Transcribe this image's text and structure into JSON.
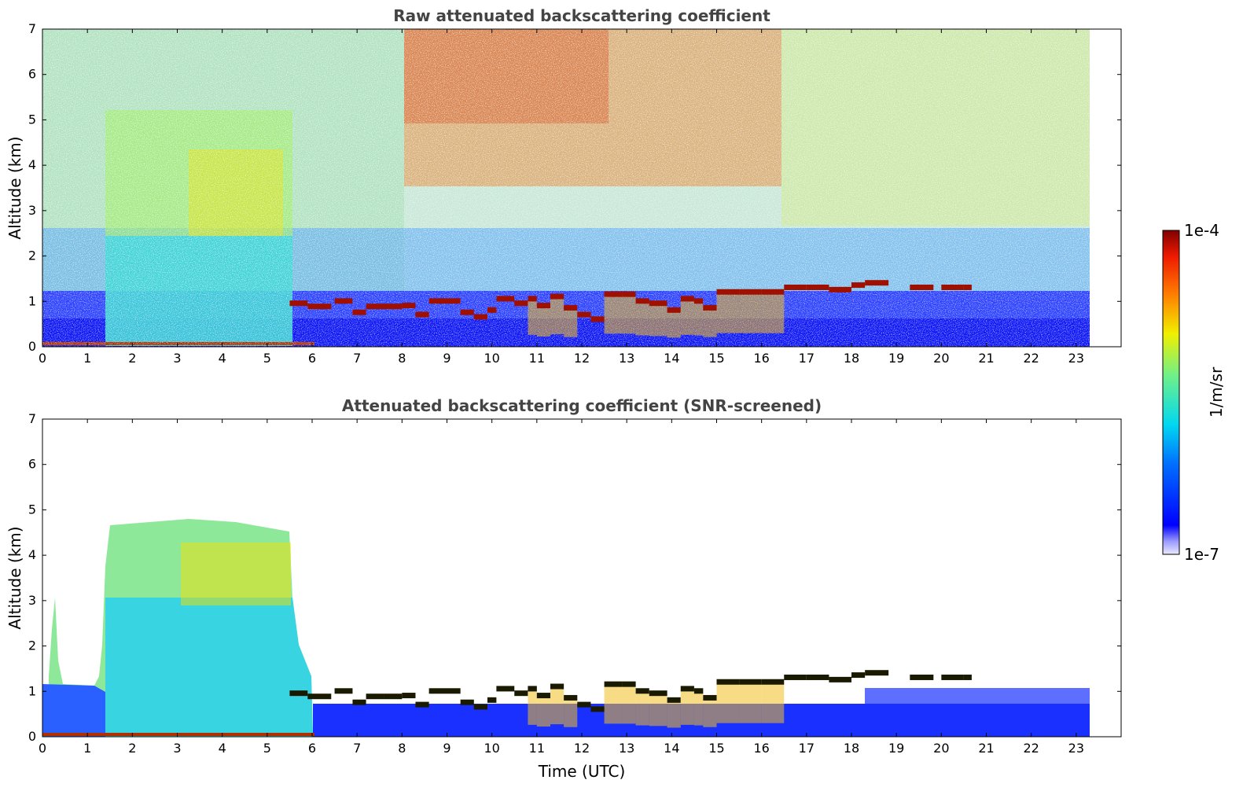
{
  "chart_data": [
    {
      "type": "heatmap",
      "title": "Raw attenuated backscattering coefficient",
      "xlabel": "",
      "ylabel": "Altitude (km)",
      "xlim": [
        0,
        24
      ],
      "ylim": [
        0,
        7
      ],
      "x_ticks": [
        "0",
        "1",
        "2",
        "3",
        "4",
        "5",
        "6",
        "7",
        "8",
        "9",
        "10",
        "11",
        "12",
        "13",
        "14",
        "15",
        "16",
        "17",
        "18",
        "19",
        "20",
        "21",
        "22",
        "23"
      ],
      "y_ticks": [
        "0",
        "1",
        "2",
        "3",
        "4",
        "5",
        "6",
        "7"
      ],
      "data_end_time": 23.3,
      "cloud_layer": {
        "x": [
          5.5,
          5.9,
          6.5,
          6.9,
          7.2,
          7.6,
          8.0,
          8.3,
          8.6,
          9.0,
          9.3,
          9.6,
          9.9,
          10.1,
          10.5,
          10.8,
          11.0,
          11.3,
          11.6,
          11.9,
          12.2,
          12.4,
          12.5,
          12.9,
          13.2,
          13.5,
          13.9,
          14.2,
          14.5,
          14.7,
          15.0,
          15.5,
          16.0,
          16.5,
          17.0,
          17.5,
          18.0,
          18.3,
          19.3,
          20.0,
          20.5
        ],
        "altitude": [
          0.95,
          0.88,
          1.0,
          0.75,
          0.88,
          0.88,
          0.9,
          0.7,
          1.0,
          1.0,
          0.75,
          0.65,
          0.8,
          1.05,
          0.95,
          1.05,
          0.9,
          1.1,
          0.85,
          0.7,
          0.6,
          0.6,
          1.15,
          1.15,
          1.0,
          0.95,
          0.8,
          1.05,
          1.0,
          0.85,
          1.2,
          1.2,
          1.2,
          1.3,
          1.3,
          1.25,
          1.35,
          1.4,
          1.3,
          1.3,
          1.3
        ]
      },
      "colorbar": {
        "min_label": "1e-7",
        "max_label": "1e-4",
        "label": "1/m/sr",
        "scale": "log",
        "colormap": "jet"
      }
    },
    {
      "type": "heatmap",
      "title": "Attenuated backscattering coefficient (SNR-screened)",
      "xlabel": "Time (UTC)",
      "ylabel": "Altitude (km)",
      "xlim": [
        0,
        24
      ],
      "ylim": [
        0,
        7
      ],
      "x_ticks": [
        "0",
        "1",
        "2",
        "3",
        "4",
        "5",
        "6",
        "7",
        "8",
        "9",
        "10",
        "11",
        "12",
        "13",
        "14",
        "15",
        "16",
        "17",
        "18",
        "19",
        "20",
        "21",
        "22",
        "23"
      ],
      "y_ticks": [
        "0",
        "1",
        "2",
        "3",
        "4",
        "5",
        "6",
        "7"
      ],
      "data_end_time": 23.3,
      "aerosol_top": {
        "x_start": 1.4,
        "x_end": 5.5,
        "altitude": 4.6
      }
    }
  ],
  "colors": {
    "title": "#444444",
    "background": "#ffffff"
  }
}
